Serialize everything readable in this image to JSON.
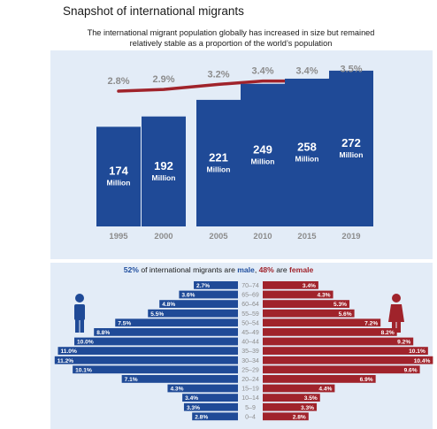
{
  "title": "Snapshot of international migrants",
  "subtitle": "The international migrant population globally has increased in size but remained relatively stable as a proportion of the world’s population",
  "colors": {
    "bar": "#1f4a97",
    "line": "#a0232b",
    "pct_label": "#8c8c8c",
    "male": "#1f4a97",
    "female": "#a0232b",
    "panel": "#e3ecf7"
  },
  "chart_data": [
    {
      "type": "bar",
      "categories": [
        "1995",
        "2000",
        "2005",
        "2010",
        "2015",
        "2019"
      ],
      "values": [
        174,
        192,
        221,
        249,
        258,
        272
      ],
      "value_labels": [
        "174",
        "192",
        "221",
        "249",
        "258",
        "272"
      ],
      "unit_label": "Million",
      "line_series": {
        "values": [
          2.8,
          2.9,
          3.2,
          3.4,
          3.4,
          3.5
        ],
        "labels": [
          "2.8%",
          "2.9%",
          "3.2%",
          "3.4%",
          "3.4%",
          "3.5%"
        ]
      },
      "ylim": [
        0,
        300
      ]
    },
    {
      "type": "bar",
      "subtype": "population-pyramid",
      "caption_parts": [
        "52%",
        " of international migrants are ",
        "male",
        ", ",
        "48%",
        " are ",
        "female"
      ],
      "categories": [
        "70–74",
        "65–69",
        "60–64",
        "55–59",
        "50–54",
        "45–49",
        "40–44",
        "35–39",
        "30–34",
        "25–29",
        "20–24",
        "15–19",
        "10–14",
        "5–9",
        "0–4"
      ],
      "series": [
        {
          "name": "male",
          "values": [
            2.7,
            3.6,
            4.8,
            5.5,
            7.5,
            8.8,
            10.0,
            11.0,
            11.2,
            10.1,
            7.1,
            4.3,
            3.4,
            3.3,
            2.8
          ],
          "labels": [
            "2.7%",
            "3.6%",
            "4.8%",
            "5.5%",
            "7.5%",
            "8.8%",
            "10.0%",
            "11.0%",
            "11.2%",
            "10.1%",
            "7.1%",
            "4.3%",
            "3.4%",
            "3.3%",
            "2.8%"
          ]
        },
        {
          "name": "female",
          "values": [
            3.4,
            4.3,
            5.3,
            5.6,
            7.2,
            8.2,
            9.2,
            10.1,
            10.4,
            9.6,
            6.9,
            4.4,
            3.5,
            3.3,
            2.8
          ],
          "labels": [
            "3.4%",
            "4.3%",
            "5.3%",
            "5.6%",
            "7.2%",
            "8.2%",
            "9.2%",
            "10.1%",
            "10.4%",
            "9.6%",
            "6.9%",
            "4.4%",
            "3.5%",
            "3.3%",
            "2.8%"
          ]
        }
      ]
    }
  ]
}
